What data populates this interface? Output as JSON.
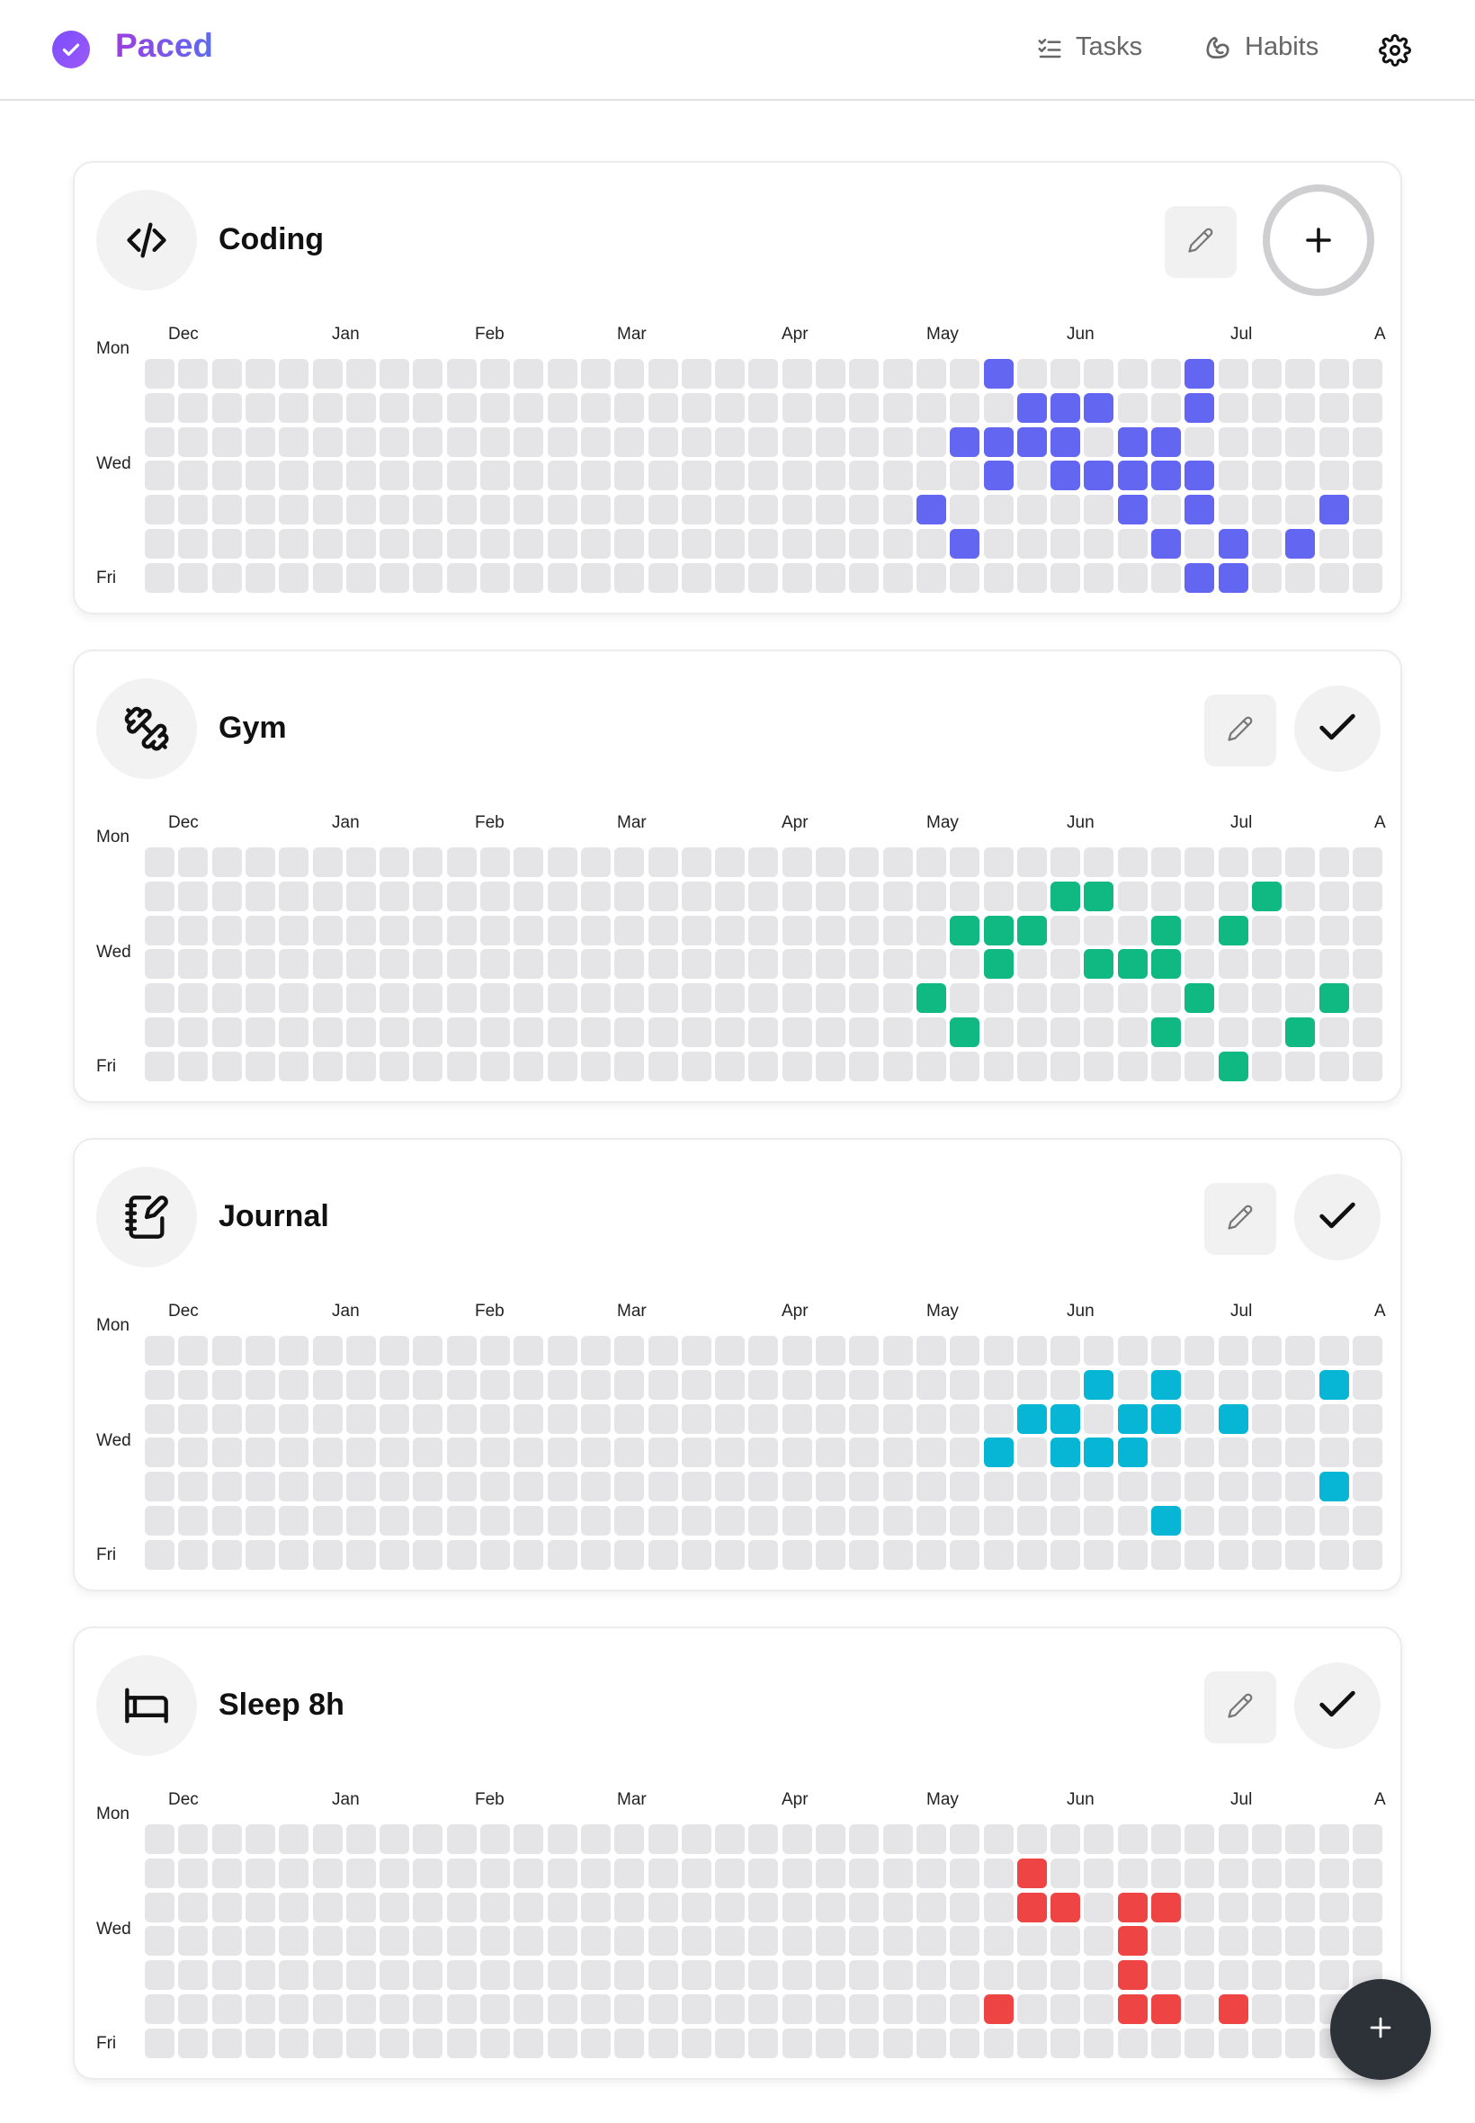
{
  "app": {
    "name": "Paced"
  },
  "nav": {
    "tasks_label": "Tasks",
    "habits_label": "Habits",
    "settings_icon": "gear-icon"
  },
  "grid_labels": {
    "months": [
      "Dec",
      "Jan",
      "Feb",
      "Mar",
      "Apr",
      "May",
      "Jun",
      "Jul",
      "A"
    ],
    "days": [
      "Mon",
      "Wed",
      "Fri"
    ]
  },
  "habits": [
    {
      "name": "Coding",
      "icon": "code-icon",
      "color": "#6366f1",
      "today_state": "add",
      "completed": [
        [
          25,
          0
        ],
        [
          31,
          0
        ],
        [
          26,
          1
        ],
        [
          27,
          1
        ],
        [
          28,
          1
        ],
        [
          31,
          1
        ],
        [
          24,
          2
        ],
        [
          25,
          2
        ],
        [
          26,
          2
        ],
        [
          27,
          2
        ],
        [
          29,
          2
        ],
        [
          30,
          2
        ],
        [
          25,
          3
        ],
        [
          27,
          3
        ],
        [
          28,
          3
        ],
        [
          29,
          3
        ],
        [
          30,
          3
        ],
        [
          31,
          3
        ],
        [
          23,
          4
        ],
        [
          29,
          4
        ],
        [
          31,
          4
        ],
        [
          35,
          4
        ],
        [
          24,
          5
        ],
        [
          30,
          5
        ],
        [
          32,
          5
        ],
        [
          34,
          5
        ],
        [
          31,
          6
        ],
        [
          32,
          6
        ]
      ]
    },
    {
      "name": "Gym",
      "icon": "dumbbell-icon",
      "color": "#10b981",
      "today_state": "done",
      "completed": [
        [
          27,
          1
        ],
        [
          28,
          1
        ],
        [
          33,
          1
        ],
        [
          24,
          2
        ],
        [
          25,
          2
        ],
        [
          26,
          2
        ],
        [
          30,
          2
        ],
        [
          32,
          2
        ],
        [
          25,
          3
        ],
        [
          28,
          3
        ],
        [
          29,
          3
        ],
        [
          30,
          3
        ],
        [
          23,
          4
        ],
        [
          31,
          4
        ],
        [
          35,
          4
        ],
        [
          24,
          5
        ],
        [
          30,
          5
        ],
        [
          34,
          5
        ],
        [
          32,
          6
        ]
      ]
    },
    {
      "name": "Journal",
      "icon": "notebook-pen-icon",
      "color": "#06b6d4",
      "today_state": "done",
      "completed": [
        [
          28,
          1
        ],
        [
          30,
          1
        ],
        [
          35,
          1
        ],
        [
          26,
          2
        ],
        [
          27,
          2
        ],
        [
          29,
          2
        ],
        [
          30,
          2
        ],
        [
          32,
          2
        ],
        [
          25,
          3
        ],
        [
          27,
          3
        ],
        [
          28,
          3
        ],
        [
          29,
          3
        ],
        [
          35,
          4
        ],
        [
          30,
          5
        ]
      ]
    },
    {
      "name": "Sleep 8h",
      "icon": "bed-icon",
      "color": "#ef4444",
      "today_state": "done",
      "completed": [
        [
          26,
          1
        ],
        [
          26,
          2
        ],
        [
          27,
          2
        ],
        [
          29,
          2
        ],
        [
          30,
          2
        ],
        [
          29,
          3
        ],
        [
          29,
          4
        ],
        [
          25,
          5
        ],
        [
          29,
          5
        ],
        [
          30,
          5
        ],
        [
          32,
          5
        ]
      ]
    }
  ],
  "colors": {
    "empty_cell": "#e5e5e7",
    "fab": "#2d3239"
  },
  "fab": {
    "icon": "plus-icon"
  }
}
